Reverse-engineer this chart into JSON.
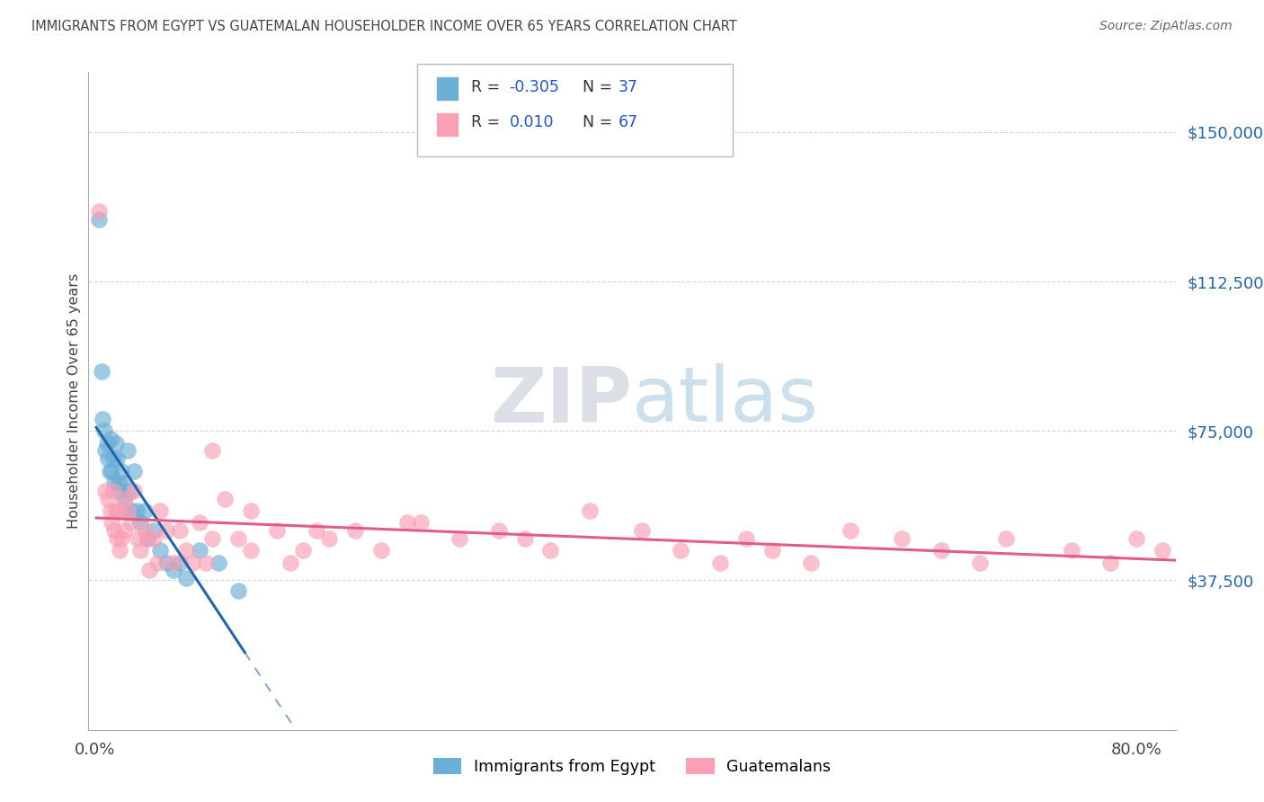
{
  "title": "IMMIGRANTS FROM EGYPT VS GUATEMALAN HOUSEHOLDER INCOME OVER 65 YEARS CORRELATION CHART",
  "source": "Source: ZipAtlas.com",
  "ylabel": "Householder Income Over 65 years",
  "ytick_labels": [
    "$37,500",
    "$75,000",
    "$112,500",
    "$150,000"
  ],
  "ytick_values": [
    37500,
    75000,
    112500,
    150000
  ],
  "ylim": [
    0,
    165000
  ],
  "xlim": [
    -0.005,
    0.83
  ],
  "legend_label1": "Immigrants from Egypt",
  "legend_label2": "Guatemalans",
  "color_egypt": "#6baed6",
  "color_guatemala": "#fa9fb5",
  "color_egypt_line": "#2166ac",
  "color_guatemala_line": "#e05c8a",
  "background_color": "#ffffff",
  "grid_color": "#cccccc",
  "title_color": "#444444",
  "source_color": "#666666",
  "ytick_color": "#2166ac",
  "egypt_x": [
    0.003,
    0.005,
    0.006,
    0.007,
    0.008,
    0.009,
    0.01,
    0.011,
    0.012,
    0.013,
    0.014,
    0.015,
    0.016,
    0.017,
    0.018,
    0.019,
    0.02,
    0.021,
    0.022,
    0.023,
    0.025,
    0.027,
    0.028,
    0.03,
    0.032,
    0.035,
    0.038,
    0.04,
    0.045,
    0.05,
    0.055,
    0.06,
    0.065,
    0.07,
    0.08,
    0.095,
    0.11
  ],
  "egypt_y": [
    128000,
    90000,
    78000,
    75000,
    70000,
    72000,
    68000,
    65000,
    73000,
    65000,
    68000,
    62000,
    72000,
    68000,
    62000,
    60000,
    65000,
    62000,
    58000,
    55000,
    70000,
    60000,
    55000,
    65000,
    55000,
    52000,
    55000,
    48000,
    50000,
    45000,
    42000,
    40000,
    42000,
    38000,
    45000,
    42000,
    35000
  ],
  "guatemala_x": [
    0.003,
    0.008,
    0.01,
    0.012,
    0.013,
    0.014,
    0.015,
    0.016,
    0.017,
    0.018,
    0.019,
    0.02,
    0.022,
    0.023,
    0.025,
    0.028,
    0.03,
    0.033,
    0.035,
    0.038,
    0.04,
    0.042,
    0.045,
    0.048,
    0.05,
    0.055,
    0.06,
    0.065,
    0.07,
    0.075,
    0.08,
    0.085,
    0.09,
    0.1,
    0.11,
    0.12,
    0.14,
    0.15,
    0.16,
    0.18,
    0.2,
    0.22,
    0.25,
    0.28,
    0.31,
    0.35,
    0.38,
    0.42,
    0.45,
    0.48,
    0.5,
    0.52,
    0.55,
    0.58,
    0.62,
    0.65,
    0.68,
    0.7,
    0.75,
    0.78,
    0.8,
    0.82,
    0.33,
    0.12,
    0.24,
    0.17,
    0.09
  ],
  "guatemala_y": [
    130000,
    60000,
    58000,
    55000,
    52000,
    60000,
    50000,
    55000,
    48000,
    55000,
    45000,
    48000,
    50000,
    58000,
    55000,
    52000,
    60000,
    48000,
    45000,
    50000,
    48000,
    40000,
    48000,
    42000,
    55000,
    50000,
    42000,
    50000,
    45000,
    42000,
    52000,
    42000,
    48000,
    58000,
    48000,
    45000,
    50000,
    42000,
    45000,
    48000,
    50000,
    45000,
    52000,
    48000,
    50000,
    45000,
    55000,
    50000,
    45000,
    42000,
    48000,
    45000,
    42000,
    50000,
    48000,
    45000,
    42000,
    48000,
    45000,
    42000,
    48000,
    45000,
    48000,
    55000,
    52000,
    50000,
    70000
  ],
  "egypt_line_x_solid_end": 0.115,
  "egypt_line_x_dash_end": 0.65,
  "guatemala_line_x_end": 0.83
}
